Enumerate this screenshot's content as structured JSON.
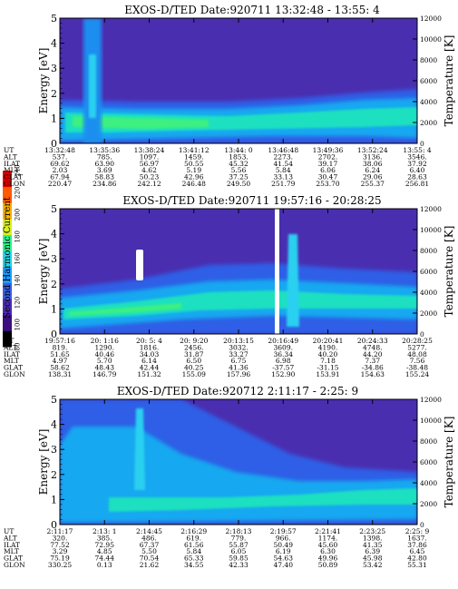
{
  "chart_data": {
    "type": "heatmap",
    "colorbar": {
      "label": "Second Harmonic Current",
      "ticks": [
        "80",
        "100",
        "120",
        "140",
        "160",
        "180",
        "200",
        "220",
        "240"
      ],
      "range": [
        80,
        240
      ],
      "colors": [
        "#000000",
        "#3b0f80",
        "#4c2bb8",
        "#3a5fe0",
        "#1c9cff",
        "#20d6e6",
        "#30f28c",
        "#d8f020",
        "#f8b000",
        "#ff5a00",
        "#e00000"
      ]
    },
    "row_labels": [
      "UT",
      "ALT",
      "ILAT",
      "MLT",
      "GLAT",
      "GLON"
    ],
    "panels": [
      {
        "title": "EXOS-D/TED   Date:920711  13:32:48 - 13:55: 4",
        "ylabel": "Energy [eV]",
        "y2label": "Temperature [K]",
        "ylim": [
          0,
          5
        ],
        "y2lim": [
          0,
          12000
        ],
        "yticks": [
          "0",
          "1",
          "2",
          "3",
          "4",
          "5"
        ],
        "y2ticks": [
          "0",
          "2000",
          "4000",
          "6000",
          "8000",
          "10000",
          "12000"
        ],
        "columns": [
          [
            "13:32:48",
            "537.",
            "69.62",
            "2.03",
            "67.94",
            "220.47"
          ],
          [
            "13:35:36",
            "785.",
            "63.90",
            "3.69",
            "58.83",
            "234.86"
          ],
          [
            "13:38:24",
            "1097.",
            "56.97",
            "4.62",
            "50.23",
            "242.12"
          ],
          [
            "13:41:12",
            "1459.",
            "50.55",
            "5.19",
            "42.96",
            "246.48"
          ],
          [
            "13:44: 0",
            "1853.",
            "45.32",
            "5.56",
            "37.25",
            "249.50"
          ],
          [
            "13:46:48",
            "2273.",
            "41.54",
            "5.84",
            "33.13",
            "251.79"
          ],
          [
            "13:49:36",
            "2702.",
            "39.17",
            "6.06",
            "30.47",
            "253.70"
          ],
          [
            "13:52:24",
            "3136.",
            "38.06",
            "6.24",
            "29.06",
            "255.37"
          ],
          [
            "13:55: 4",
            "3546.",
            "37.92",
            "6.40",
            "28.63",
            "256.81"
          ]
        ]
      },
      {
        "title": "EXOS-D/TED   Date:920711  19:57:16 - 20:28:25",
        "ylabel": "Energy [eV]",
        "y2label": "Temperature [K]",
        "ylim": [
          0,
          5
        ],
        "y2lim": [
          0,
          12000
        ],
        "yticks": [
          "0",
          "1",
          "2",
          "3",
          "4",
          "5"
        ],
        "y2ticks": [
          "0",
          "2000",
          "4000",
          "6000",
          "8000",
          "10000",
          "12000"
        ],
        "columns": [
          [
            "19:57:16",
            "819.",
            "51.65",
            "4.97",
            "58.62",
            "138.31"
          ],
          [
            "20: 1:16",
            "1290.",
            "40.46",
            "5.70",
            "48.43",
            "146.79"
          ],
          [
            "20: 5: 4",
            "1816.",
            "34.03",
            "6.14",
            "42.44",
            "151.32"
          ],
          [
            "20: 9:20",
            "2456.",
            "31.87",
            "6.50",
            "40.25",
            "155.09"
          ],
          [
            "20:13:15",
            "3032.",
            "33.27",
            "6.75",
            "41.36",
            "157.96"
          ],
          [
            "20:16:49",
            "3609.",
            "36.34",
            "6.98",
            "-37.57",
            "152.90"
          ],
          [
            "20:20:41",
            "4190.",
            "40.20",
            "7.18",
            "-31.15",
            "153.91"
          ],
          [
            "20:24:33",
            "4748.",
            "44.20",
            "7.37",
            "-34.86",
            "154.63"
          ],
          [
            "20:28:25",
            "5277.",
            "48.08",
            "7.56",
            "-38.48",
            "155.24"
          ]
        ]
      },
      {
        "title": "EXOS-D/TED   Date:920712  2:11:17 - 2:25: 9",
        "ylabel": "Energy [eV]",
        "y2label": "Temperature [K]",
        "ylim": [
          0,
          5
        ],
        "y2lim": [
          0,
          12000
        ],
        "yticks": [
          "0",
          "1",
          "2",
          "3",
          "4",
          "5"
        ],
        "y2ticks": [
          "0",
          "2000",
          "4000",
          "6000",
          "8000",
          "10000",
          "12000"
        ],
        "columns": [
          [
            "2:11:17",
            "320.",
            "77.52",
            "3.29",
            "75.19",
            "330.25"
          ],
          [
            "2:13: 1",
            "385.",
            "72.95",
            "4.85",
            "74.44",
            "0.13"
          ],
          [
            "2:14:45",
            "486.",
            "67.37",
            "5.50",
            "70.54",
            "21.62"
          ],
          [
            "2:16:29",
            "619.",
            "61.56",
            "5.84",
            "65.33",
            "34.55"
          ],
          [
            "2:18:13",
            "779.",
            "55.87",
            "6.05",
            "59.85",
            "42.33"
          ],
          [
            "2:19:57",
            "966.",
            "50.49",
            "6.19",
            "54.63",
            "47.40"
          ],
          [
            "2:21:41",
            "1174.",
            "45.60",
            "6.30",
            "49.96",
            "50.89"
          ],
          [
            "2:23:25",
            "1398.",
            "41.35",
            "6.39",
            "45.98",
            "53.42"
          ],
          [
            "2:25: 9",
            "1637.",
            "37.86",
            "6.45",
            "42.80",
            "55.31"
          ]
        ]
      }
    ]
  }
}
